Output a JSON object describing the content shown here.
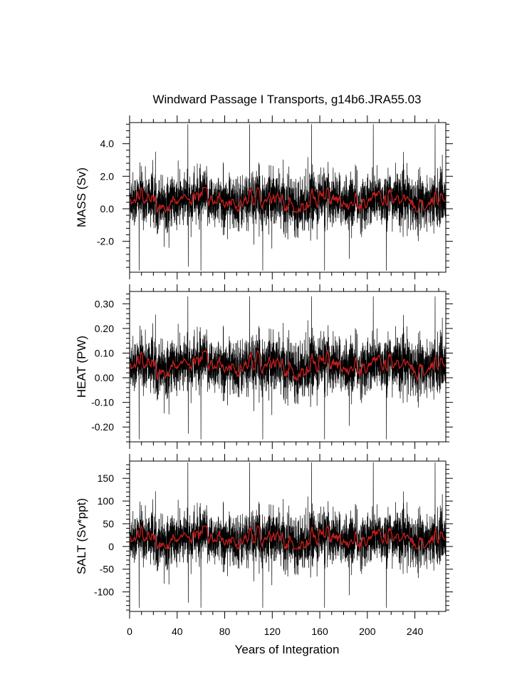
{
  "title": "Windward Passage I Transports, g14b6.JRA55.03",
  "xlabel": "Years of Integration",
  "colors": {
    "raw": "#000000",
    "smooth": "#c81e1e",
    "frame": "#000000"
  },
  "chart_data": [
    {
      "type": "line",
      "panel": "mass",
      "ylabel": "MASS (Sv)",
      "xlim": [
        0,
        266
      ],
      "ylim": [
        -3.9,
        5.3
      ],
      "xticks": [
        0,
        40,
        80,
        120,
        160,
        200,
        240
      ],
      "xtick_labels": [
        "0",
        "40",
        "80",
        "120",
        "160",
        "200",
        "240"
      ],
      "yticks": [
        -2.0,
        0.0,
        2.0,
        4.0
      ],
      "ytick_labels": [
        "-2.0",
        "0.0",
        "2.0",
        "4.0"
      ],
      "series": [
        {
          "style": "raw monthly, thin black line",
          "mean": 0.5,
          "std": 0.95,
          "min": -3.8,
          "max": 5.2
        },
        {
          "style": "smoothed, red line",
          "mean": 0.5,
          "range": [
            -0.2,
            1.3
          ]
        }
      ]
    },
    {
      "type": "line",
      "panel": "heat",
      "ylabel": "HEAT (PW)",
      "xlim": [
        0,
        266
      ],
      "ylim": [
        -0.26,
        0.35
      ],
      "xticks": [
        0,
        40,
        80,
        120,
        160,
        200,
        240
      ],
      "xtick_labels": [
        "0",
        "40",
        "80",
        "120",
        "160",
        "200",
        "240"
      ],
      "yticks": [
        -0.2,
        -0.1,
        0.0,
        0.1,
        0.2,
        0.3
      ],
      "ytick_labels": [
        "-0.20",
        "-0.10",
        "0.00",
        "0.10",
        "0.20",
        "0.30"
      ],
      "series": [
        {
          "style": "raw monthly, thin black line",
          "mean": 0.05,
          "std": 0.065,
          "min": -0.25,
          "max": 0.33
        },
        {
          "style": "smoothed, red line",
          "mean": 0.05,
          "range": [
            -0.01,
            0.11
          ]
        }
      ]
    },
    {
      "type": "line",
      "panel": "salt",
      "ylabel": "SALT (Sv*ppt)",
      "xlim": [
        0,
        266
      ],
      "ylim": [
        -143,
        188
      ],
      "xticks": [
        0,
        40,
        80,
        120,
        160,
        200,
        240
      ],
      "xtick_labels": [
        "0",
        "40",
        "80",
        "120",
        "160",
        "200",
        "240"
      ],
      "yticks": [
        -100,
        -50,
        0,
        50,
        100,
        150
      ],
      "ytick_labels": [
        "-100",
        "-50",
        "0",
        "50",
        "100",
        "150"
      ],
      "series": [
        {
          "style": "raw monthly, thin black line",
          "mean": 17,
          "std": 33,
          "min": -135,
          "max": 185
        },
        {
          "style": "smoothed, red line",
          "mean": 17,
          "range": [
            -5,
            45
          ]
        }
      ]
    }
  ]
}
